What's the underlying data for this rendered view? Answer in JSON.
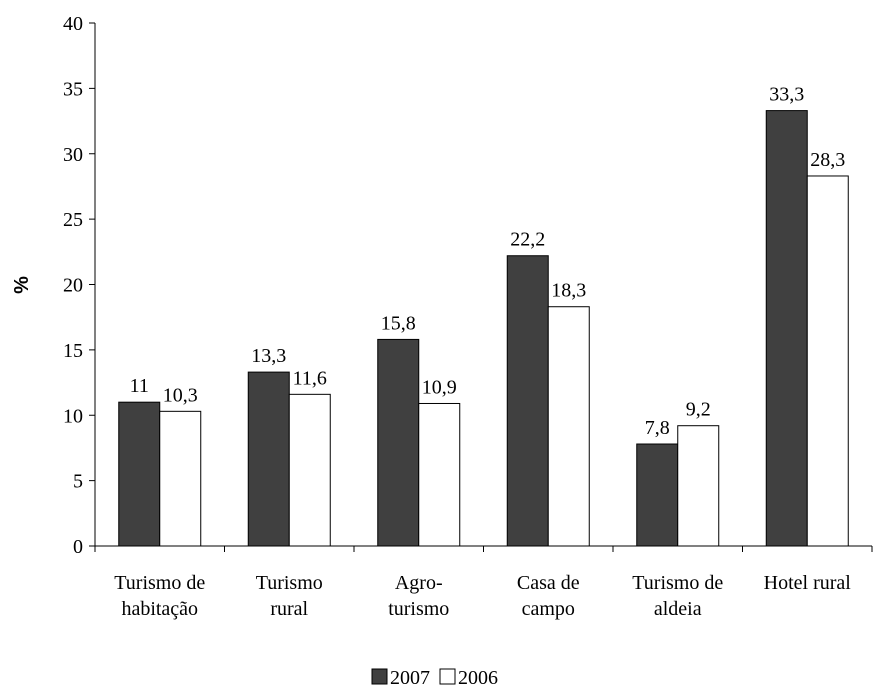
{
  "chart_data": {
    "type": "bar",
    "y_label": "%",
    "categories": [
      "Turismo de\nhabitação",
      "Turismo\nrural",
      "Agro-\nturismo",
      "Casa de\ncampo",
      "Turismo de\naldeia",
      "Hotel rural"
    ],
    "series": [
      {
        "name": "2007",
        "color": "#404040",
        "values": [
          11,
          13.3,
          15.8,
          22.2,
          7.8,
          33.3
        ],
        "value_labels": [
          "11",
          "13,3",
          "15,8",
          "22,2",
          "7,8",
          "33,3"
        ]
      },
      {
        "name": "2006",
        "color": "#ffffff",
        "values": [
          10.3,
          11.6,
          10.9,
          18.3,
          9.2,
          28.3
        ],
        "value_labels": [
          "10,3",
          "11,6",
          "10,9",
          "18,3",
          "9,2",
          "28,3"
        ]
      }
    ],
    "ylim": [
      0,
      40
    ],
    "yticks": [
      0,
      5,
      10,
      15,
      20,
      25,
      30,
      35,
      40
    ],
    "grid": false,
    "legend": "bottom"
  }
}
